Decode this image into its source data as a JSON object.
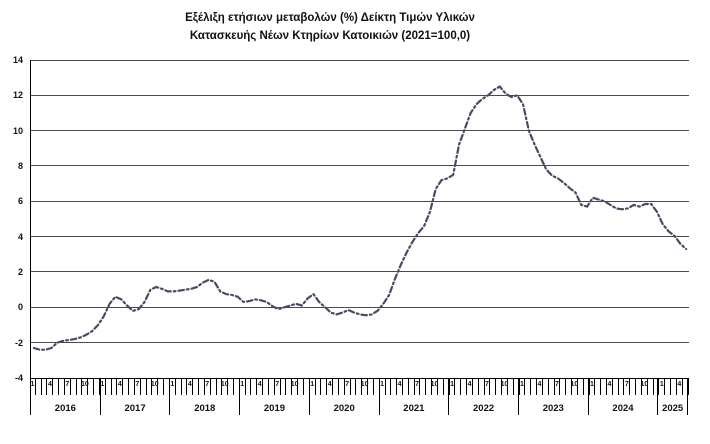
{
  "title": {
    "line1": "Εξέλιξη ετήσιων μεταβολών (%) Δείκτη Τιμών Υλικών",
    "line2": "Κατασκευής Νέων Κτηρίων Κατοικιών (2021=100,0)"
  },
  "chart_data": {
    "type": "line",
    "title": "Εξέλιξη ετήσιων μεταβολών (%) Δείκτη Τιμών Υλικών Κατασκευής Νέων Κτηρίων Κατοικιών (2021=100,0)",
    "ylim": [
      -4,
      14
    ],
    "y_ticks": [
      14,
      12,
      10,
      8,
      6,
      4,
      2,
      0,
      -2,
      -4
    ],
    "grid": "horizontal",
    "legend": "none",
    "x_start": "2016-01",
    "x_end": "2025-05",
    "month_labels_shown": [
      "1",
      "4",
      "7",
      "10"
    ],
    "years": [
      {
        "label": "2016",
        "months": 12
      },
      {
        "label": "2017",
        "months": 12
      },
      {
        "label": "2018",
        "months": 12
      },
      {
        "label": "2019",
        "months": 12
      },
      {
        "label": "2020",
        "months": 12
      },
      {
        "label": "2021",
        "months": 12
      },
      {
        "label": "2022",
        "months": 12
      },
      {
        "label": "2023",
        "months": 12
      },
      {
        "label": "2024",
        "months": 12
      },
      {
        "label": "2025",
        "months": 5
      }
    ],
    "series": [
      {
        "values": [
          -2.3,
          -2.4,
          -2.4,
          -2.3,
          -2.0,
          -1.9,
          -1.85,
          -1.8,
          -1.7,
          -1.55,
          -1.35,
          -1.0,
          -0.5,
          0.2,
          0.6,
          0.45,
          0.1,
          -0.2,
          -0.1,
          0.3,
          1.0,
          1.15,
          1.05,
          0.9,
          0.9,
          0.95,
          1.0,
          1.05,
          1.15,
          1.4,
          1.55,
          1.45,
          0.9,
          0.75,
          0.7,
          0.6,
          0.3,
          0.35,
          0.45,
          0.4,
          0.3,
          0.05,
          -0.1,
          0.0,
          0.1,
          0.2,
          0.1,
          0.5,
          0.75,
          0.3,
          0.0,
          -0.3,
          -0.4,
          -0.3,
          -0.15,
          -0.3,
          -0.4,
          -0.45,
          -0.4,
          -0.2,
          0.2,
          0.7,
          1.6,
          2.4,
          3.1,
          3.7,
          4.2,
          4.6,
          5.4,
          6.7,
          7.2,
          7.3,
          7.5,
          9.2,
          10.1,
          11.0,
          11.5,
          11.8,
          12.0,
          12.3,
          12.5,
          12.1,
          11.9,
          12.0,
          11.5,
          10.0,
          9.2,
          8.5,
          7.8,
          7.45,
          7.3,
          7.05,
          6.75,
          6.5,
          5.8,
          5.7,
          6.2,
          6.1,
          6.0,
          5.8,
          5.6,
          5.55,
          5.6,
          5.8,
          5.7,
          5.85,
          5.85,
          5.4,
          4.7,
          4.3,
          4.05,
          3.6,
          3.3
        ]
      }
    ],
    "line_style": {
      "color": "#4a4a64",
      "dashed": true,
      "marker": "none"
    },
    "colors": {
      "gridline": "#4a4a4a",
      "axis": "#000000",
      "text": "#111111"
    }
  }
}
